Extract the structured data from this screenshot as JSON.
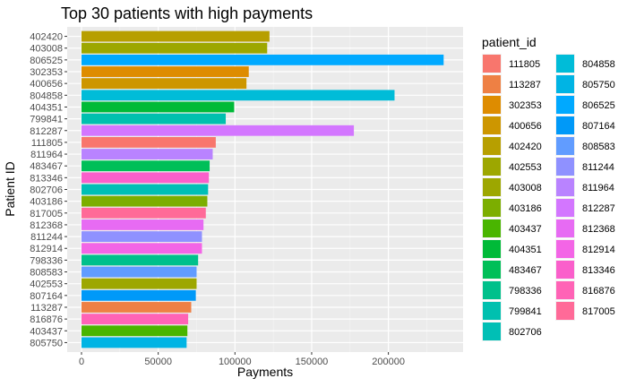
{
  "chart_data": {
    "type": "bar",
    "orientation": "horizontal",
    "title": "Top 30 patients with high payments",
    "xlabel": "Payments",
    "ylabel": "Patient ID",
    "xlim": [
      0,
      245000
    ],
    "xticks": [
      0,
      50000,
      100000,
      150000,
      200000
    ],
    "xtick_labels": [
      "0",
      "50000",
      "100000",
      "150000",
      "200000"
    ],
    "grid": true,
    "legend_title": "patient_id",
    "legend_position": "right",
    "categories": [
      "402420",
      "403008",
      "806525",
      "302353",
      "400656",
      "804858",
      "404351",
      "799841",
      "812287",
      "111805",
      "811964",
      "483467",
      "813346",
      "802706",
      "403186",
      "817005",
      "812368",
      "811244",
      "812914",
      "798336",
      "808583",
      "402553",
      "807164",
      "113287",
      "816876",
      "403437",
      "805750"
    ],
    "values": [
      122500,
      121000,
      236000,
      109000,
      107500,
      204000,
      99500,
      94000,
      177500,
      87500,
      85500,
      83500,
      83000,
      82500,
      82000,
      81000,
      79500,
      78500,
      78500,
      76000,
      75000,
      75000,
      74500,
      71500,
      69500,
      69000,
      68500
    ],
    "legend": [
      {
        "id": "111805",
        "color": "#F8766D"
      },
      {
        "id": "113287",
        "color": "#EE8044"
      },
      {
        "id": "302353",
        "color": "#DE8C00"
      },
      {
        "id": "400656",
        "color": "#CD9600"
      },
      {
        "id": "402420",
        "color": "#B79F00"
      },
      {
        "id": "402553",
        "color": "#9DA700"
      },
      {
        "id": "403008",
        "color": "#9DA700"
      },
      {
        "id": "403186",
        "color": "#7CAE00"
      },
      {
        "id": "403437",
        "color": "#49B500"
      },
      {
        "id": "404351",
        "color": "#00BA38"
      },
      {
        "id": "483467",
        "color": "#00BF58"
      },
      {
        "id": "798336",
        "color": "#00C08B"
      },
      {
        "id": "799841",
        "color": "#00C0AF"
      },
      {
        "id": "802706",
        "color": "#00BFB5"
      },
      {
        "id": "804858",
        "color": "#00BCD8"
      },
      {
        "id": "805750",
        "color": "#00B4E4"
      },
      {
        "id": "806525",
        "color": "#00A9FF"
      },
      {
        "id": "807164",
        "color": "#0099F8"
      },
      {
        "id": "808583",
        "color": "#619CFF"
      },
      {
        "id": "811244",
        "color": "#8F91FF"
      },
      {
        "id": "811964",
        "color": "#B983FF"
      },
      {
        "id": "812287",
        "color": "#D376FF"
      },
      {
        "id": "812368",
        "color": "#E76BF3"
      },
      {
        "id": "812914",
        "color": "#F365E6"
      },
      {
        "id": "813346",
        "color": "#FA5FCB"
      },
      {
        "id": "816876",
        "color": "#FF63B6"
      },
      {
        "id": "817005",
        "color": "#FF6A98"
      }
    ]
  }
}
